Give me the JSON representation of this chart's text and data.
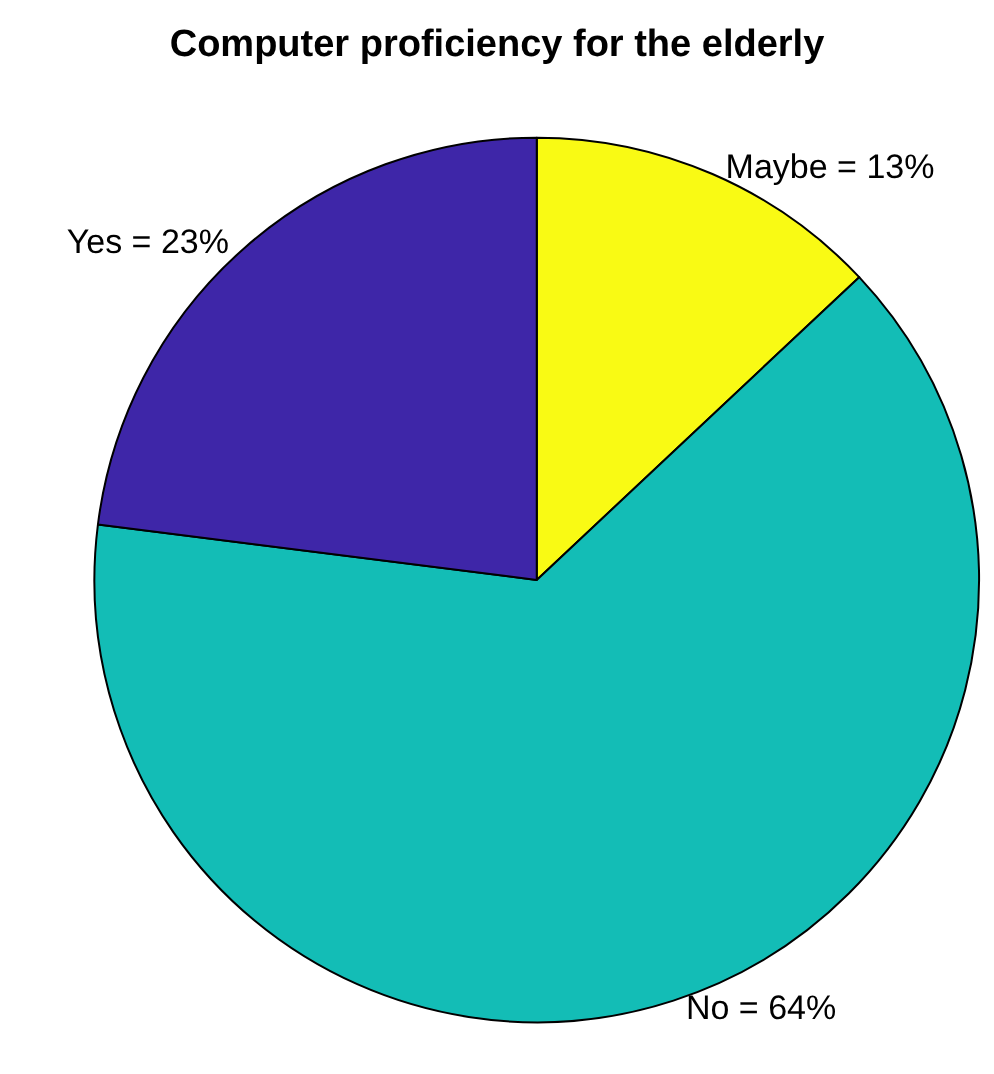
{
  "chart_data": {
    "type": "pie",
    "title": "Computer proficiency for the elderly",
    "categories": [
      "Maybe = 13%",
      "No = 64%",
      "Yes = 23%"
    ],
    "values": [
      13,
      64,
      23
    ],
    "colors": [
      "#f9fa14",
      "#13bdb6",
      "#3e26a8"
    ]
  }
}
